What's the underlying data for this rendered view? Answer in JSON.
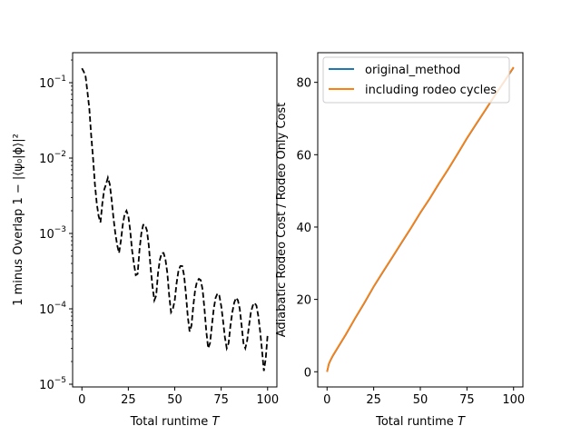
{
  "chart_data": [
    {
      "type": "line",
      "title": "",
      "xlabel_main": "Total runtime ",
      "xlabel_var": "T",
      "ylabel": "1 minus Overlap 1 − |⟨ψ₀|ϕ⟩|²",
      "yscale": "log",
      "xlim": [
        -5,
        105
      ],
      "ylim": [
        9.2e-06,
        0.25
      ],
      "x_ticks": [
        0,
        25,
        50,
        75,
        100
      ],
      "x_tick_labels": [
        "0",
        "25",
        "50",
        "75",
        "100"
      ],
      "y_ticks": [
        1e-05,
        0.0001,
        0.001,
        0.01,
        0.1
      ],
      "y_tick_bases": [
        "10",
        "10",
        "10",
        "10",
        "10"
      ],
      "y_tick_exps": [
        "−5",
        "−4",
        "−3",
        "−2",
        "−1"
      ],
      "series": [
        {
          "color": "#000000",
          "linestyle": "dashed",
          "x": [
            0,
            1,
            2,
            3,
            4,
            5,
            6,
            7,
            8,
            9,
            10,
            11,
            12,
            13,
            14,
            15,
            16,
            17,
            18,
            19,
            20,
            21,
            22,
            23,
            24,
            25,
            26,
            27,
            28,
            29,
            30,
            31,
            32,
            33,
            34,
            35,
            36,
            37,
            38,
            39,
            40,
            41,
            42,
            43,
            44,
            45,
            46,
            47,
            48,
            49,
            50,
            51,
            52,
            53,
            54,
            55,
            56,
            57,
            58,
            59,
            60,
            61,
            62,
            63,
            64,
            65,
            66,
            67,
            68,
            69,
            70,
            71,
            72,
            73,
            74,
            75,
            76,
            77,
            78,
            79,
            80,
            81,
            82,
            83,
            84,
            85,
            86,
            87,
            88,
            89,
            90,
            91,
            92,
            93,
            94,
            95,
            96,
            97,
            98,
            99,
            100
          ],
          "y": [
            0.155,
            0.14,
            0.12,
            0.075,
            0.045,
            0.02,
            0.01,
            0.0045,
            0.0025,
            0.0017,
            0.0014,
            0.0025,
            0.0038,
            0.0045,
            0.0055,
            0.0045,
            0.0028,
            0.0016,
            0.001,
            0.0007,
            0.00055,
            0.0008,
            0.0013,
            0.0018,
            0.002,
            0.0017,
            0.0011,
            0.0006,
            0.0004,
            0.00028,
            0.00029,
            0.0006,
            0.001,
            0.0013,
            0.0013,
            0.0011,
            0.0007,
            0.00035,
            0.0002,
            0.00013,
            0.00015,
            0.0003,
            0.00045,
            0.00055,
            0.00055,
            0.00045,
            0.0003,
            0.00015,
            9e-05,
            0.0001,
            0.00013,
            0.00022,
            0.00032,
            0.00037,
            0.00037,
            0.00028,
            0.00016,
            8e-05,
            5e-05,
            6e-05,
            0.00011,
            0.00018,
            0.00023,
            0.00025,
            0.00024,
            0.00018,
            0.0001,
            5e-05,
            3e-05,
            3.5e-05,
            6e-05,
            0.0001,
            0.00014,
            0.00016,
            0.00015,
            0.00011,
            7e-05,
            4.2e-05,
            3e-05,
            3.5e-05,
            6e-05,
            9e-05,
            0.00012,
            0.00014,
            0.00013,
            0.0001,
            6e-05,
            3.5e-05,
            3e-05,
            3.8e-05,
            6e-05,
            9e-05,
            0.00011,
            0.00012,
            0.00011,
            8e-05,
            5e-05,
            2.8e-05,
            1.5e-05,
            2.2e-05,
            4.5e-05
          ]
        }
      ]
    },
    {
      "type": "line",
      "title": "",
      "xlabel_main": "Total runtime ",
      "xlabel_var": "T",
      "ylabel": "Adiabatic Rodeo Cost / Rodeo Only Cost",
      "xlim": [
        -5,
        105
      ],
      "ylim": [
        -4.2,
        88.2
      ],
      "x_ticks": [
        0,
        25,
        50,
        75,
        100
      ],
      "x_tick_labels": [
        "0",
        "25",
        "50",
        "75",
        "100"
      ],
      "y_ticks": [
        0,
        20,
        40,
        60,
        80
      ],
      "y_tick_labels": [
        "0",
        "20",
        "40",
        "60",
        "80"
      ],
      "legend_position": "top-left",
      "series": [
        {
          "name": "original_method",
          "color": "#1f77b4",
          "x": [
            0,
            1,
            2,
            3,
            5,
            10,
            15,
            20,
            25,
            30,
            35,
            40,
            45,
            50,
            55,
            60,
            65,
            70,
            75,
            80,
            85,
            90,
            95,
            100
          ],
          "y": [
            0,
            2.2,
            3.3,
            4.3,
            6.0,
            10.2,
            14.7,
            19.0,
            23.5,
            27.6,
            31.6,
            35.7,
            39.7,
            43.9,
            47.8,
            52.0,
            56.0,
            60.2,
            64.5,
            68.5,
            72.4,
            76.4,
            80.2,
            84.1
          ]
        },
        {
          "name": "including rodeo cycles",
          "color": "#ff7f0e",
          "x": [
            0,
            1,
            2,
            3,
            5,
            10,
            15,
            20,
            25,
            30,
            35,
            40,
            45,
            50,
            55,
            60,
            65,
            70,
            75,
            80,
            85,
            90,
            95,
            100
          ],
          "y": [
            0,
            2.3,
            3.4,
            4.4,
            6.1,
            10.3,
            14.8,
            19.1,
            23.6,
            27.7,
            31.7,
            35.8,
            39.8,
            44.0,
            47.9,
            52.1,
            56.1,
            60.3,
            64.6,
            68.6,
            72.5,
            76.5,
            80.3,
            84.2
          ]
        }
      ]
    }
  ]
}
